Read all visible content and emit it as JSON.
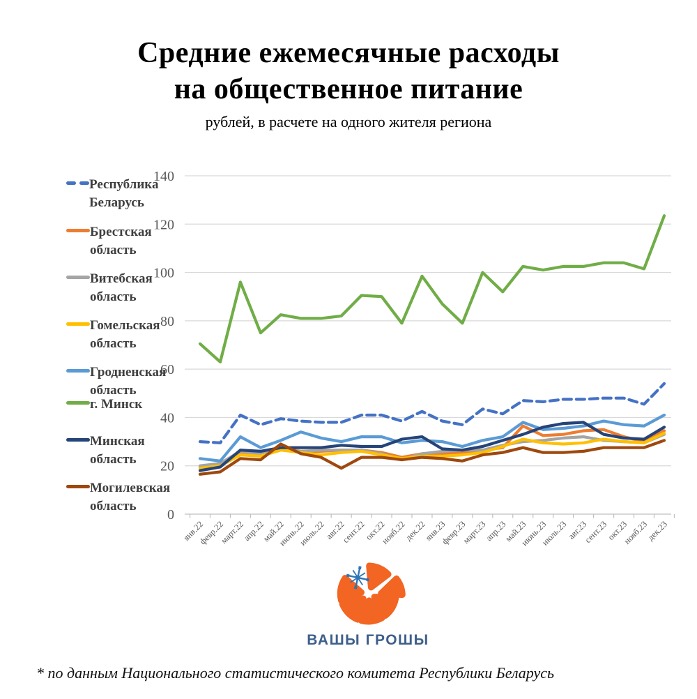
{
  "title": {
    "line1": "Средние ежемесячные расходы",
    "line2": "на общественное питание",
    "subtitle": "рублей, в расчете на одного жителя региона"
  },
  "footnote": "* по данным Национального статистического комитета Республики Беларусь",
  "logo": {
    "text": "ВАШЫ ГРОШЫ",
    "orange": "#F26522",
    "ornament_blue": "#2E75B6",
    "text_color": "#3E5F8A"
  },
  "chart_data": {
    "type": "line",
    "x": [
      "янв.22",
      "февр.22",
      "март.22",
      "апр.22",
      "май.22",
      "июнь.22",
      "июль.22",
      "авг.22",
      "сент.22",
      "окт.22",
      "нояб.22",
      "дек.22",
      "янв.23",
      "февр.23",
      "март.23",
      "апр.23",
      "май.23",
      "июнь.23",
      "июль.23",
      "авг.23",
      "сент.23",
      "окт.23",
      "нояб.23",
      "дек.23"
    ],
    "ylim": [
      0,
      140
    ],
    "ytick_step": 20,
    "grid": true,
    "legend_position": "left",
    "gridline_color": "#D9D9D9",
    "axis_line_color": "#BFBFBF",
    "axis_label_color": "#595959",
    "series": [
      {
        "name": "Республика Беларусь",
        "color": "#4472C4",
        "dash": true,
        "values": [
          30,
          29.5,
          41,
          37,
          39.5,
          38.5,
          38,
          38,
          41,
          41,
          38.5,
          42.5,
          38.5,
          37,
          43.5,
          41.5,
          47,
          46.5,
          47.5,
          47.5,
          48,
          48,
          45.5,
          54
        ]
      },
      {
        "name": "Брестская область",
        "color": "#ED7D31",
        "dash": false,
        "values": [
          19.5,
          21,
          25.5,
          24.5,
          27.5,
          26,
          26,
          26.5,
          26.5,
          25.5,
          23.5,
          25,
          25,
          25.5,
          26.5,
          27.5,
          36.5,
          32.5,
          33,
          34.5,
          35,
          32,
          30,
          34.5
        ]
      },
      {
        "name": "Витебская область",
        "color": "#A5A5A5",
        "dash": false,
        "values": [
          20,
          21,
          26,
          25,
          27,
          26,
          26.5,
          26.5,
          26.5,
          25,
          22.5,
          25,
          26,
          26.5,
          26.5,
          28.5,
          30,
          30.5,
          31.5,
          32,
          30.5,
          30,
          29.5,
          33
        ]
      },
      {
        "name": "Гомельская область",
        "color": "#FFC000",
        "dash": false,
        "values": [
          19,
          20,
          24.5,
          24,
          26.5,
          25.5,
          24.5,
          25.5,
          26,
          24.5,
          23,
          24,
          24,
          24.5,
          25.5,
          28,
          31,
          29.5,
          29,
          29.5,
          31,
          30,
          29.5,
          33.5
        ]
      },
      {
        "name": "Гродненская область",
        "color": "#5B9BD5",
        "dash": false,
        "values": [
          23,
          22,
          32,
          27.5,
          30.5,
          34,
          31.5,
          30,
          32,
          32,
          29.5,
          30.5,
          30,
          28,
          30.5,
          32,
          38,
          35,
          35.5,
          36.5,
          38.5,
          37,
          36.5,
          41
        ]
      },
      {
        "name": "г. Минск",
        "color": "#70AD47",
        "dash": false,
        "values": [
          70.5,
          63,
          96,
          75,
          82.5,
          81,
          81,
          82,
          90.5,
          90,
          79,
          98.5,
          87,
          79,
          100,
          92,
          102.5,
          101,
          102.5,
          102.5,
          104,
          104,
          101.5,
          123.5
        ]
      },
      {
        "name": "Минская область",
        "color": "#264478",
        "dash": false,
        "values": [
          18,
          19.5,
          26.5,
          26,
          27.5,
          27.5,
          27.5,
          28.5,
          28,
          28,
          31,
          32,
          27,
          26.5,
          28,
          30.5,
          33,
          36,
          37.5,
          38,
          33,
          31.5,
          31,
          36
        ]
      },
      {
        "name": "Могилевская область",
        "color": "#9E480E",
        "dash": false,
        "values": [
          16.5,
          17.5,
          23,
          22.5,
          29,
          25,
          23.5,
          19,
          23.5,
          23.5,
          22.5,
          23.5,
          23,
          22,
          24.5,
          25.5,
          27.5,
          25.5,
          25.5,
          26,
          27.5,
          27.5,
          27.5,
          30.5
        ]
      }
    ]
  }
}
